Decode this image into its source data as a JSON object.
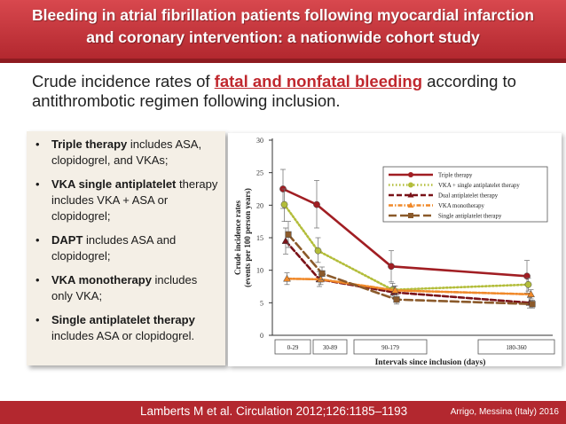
{
  "header": {
    "line1": "Bleeding in atrial fibrillation patients following myocardial infarction",
    "line2": "and coronary intervention: a nationwide cohort study"
  },
  "subtitle": {
    "before": "Crude incidence rates of ",
    "highlight": "fatal and nonfatal bleeding",
    "after": " according to antithrombotic regimen following inclusion."
  },
  "bullets": [
    {
      "bold": "Triple therapy",
      "text": " includes ASA, clopidogrel, and VKAs;"
    },
    {
      "bold": "VKA single antiplatelet",
      "text": " therapy includes VKA + ASA or clopidogrel;"
    },
    {
      "bold": "DAPT",
      "text": " includes ASA and clopidogrel;"
    },
    {
      "bold": "VKA monotherapy",
      "text": " includes only VKA;"
    },
    {
      "bold": "Single antiplatelet therapy",
      "text": " includes ASA or clopidogrel."
    }
  ],
  "footer": {
    "citation": "Lamberts M et al. Circulation 2012;126:1185–1193",
    "credit": "Arrigo, Messina (Italy) 2016"
  },
  "chart_data": {
    "type": "line",
    "xlabel": "Intervals since inclusion (days)",
    "ylabel_line1": "Crude incidence rates",
    "ylabel_line2": "(events per 100 person years)",
    "ylim": [
      0,
      30
    ],
    "yticks": [
      0,
      5,
      10,
      15,
      20,
      25,
      30
    ],
    "categories": [
      "0-29",
      "30-89",
      "90-179",
      "180-360"
    ],
    "legend_position": "top-right",
    "series": [
      {
        "name": "Triple therapy",
        "color": "#a11e23",
        "dash": "solid",
        "marker": "circle",
        "values": [
          22.5,
          20.1,
          10.6,
          9.1
        ],
        "err_low": [
          19.5,
          16.5,
          8.2,
          6.5
        ],
        "err_high": [
          25.5,
          23.8,
          13.0,
          11.5
        ]
      },
      {
        "name": "VKA + single antiplatelet therapy",
        "color": "#b3bd3a",
        "dash": "dotted",
        "marker": "circle",
        "values": [
          20.1,
          13.0,
          7.0,
          7.8
        ],
        "err_low": [
          17.5,
          11.2,
          6.0,
          6.8
        ],
        "err_high": [
          22.5,
          15.0,
          8.0,
          8.8
        ]
      },
      {
        "name": "Dual antiplatelet therapy",
        "color": "#7a1218",
        "dash": "dashed",
        "marker": "triangle",
        "values": [
          14.5,
          8.6,
          6.6,
          5.0
        ],
        "err_low": [
          12.5,
          7.5,
          5.8,
          4.2
        ],
        "err_high": [
          16.5,
          9.8,
          7.5,
          5.8
        ]
      },
      {
        "name": "VKA monotherapy",
        "color": "#f0892a",
        "dash": "dashdot",
        "marker": "triangle",
        "values": [
          8.7,
          8.6,
          6.9,
          6.3
        ],
        "err_low": [
          7.8,
          7.8,
          6.2,
          5.6
        ],
        "err_high": [
          9.6,
          9.4,
          7.6,
          7.0
        ]
      },
      {
        "name": "Single antiplatelet therapy",
        "color": "#8b5a2b",
        "dash": "longdash",
        "marker": "square",
        "values": [
          15.5,
          9.5,
          5.5,
          4.8
        ],
        "err_low": [
          13.5,
          8.5,
          4.8,
          4.2
        ],
        "err_high": [
          17.5,
          10.5,
          6.2,
          5.4
        ]
      }
    ]
  }
}
